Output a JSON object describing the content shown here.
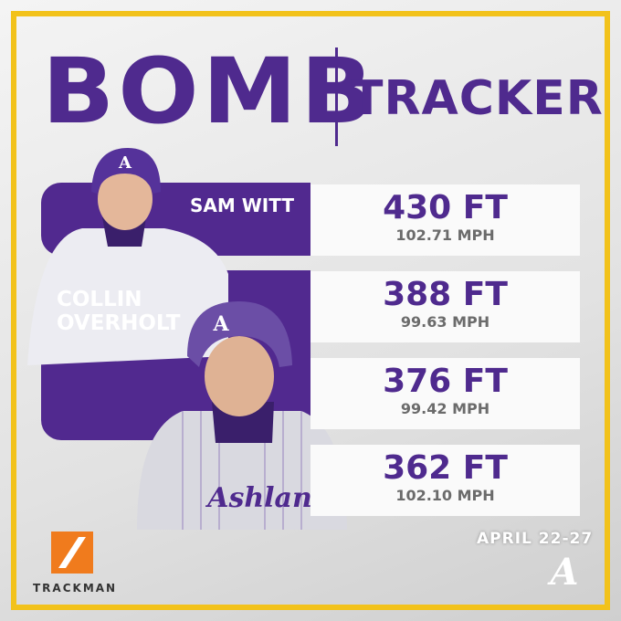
{
  "header": {
    "title_left": "BOMB",
    "title_right": "TRACKER"
  },
  "players": [
    "SAM WITT",
    "COLLIN OVERHOLT"
  ],
  "hits": [
    {
      "distance": "430 FT",
      "speed": "102.71 MPH"
    },
    {
      "distance": "388 FT",
      "speed": "99.63 MPH"
    },
    {
      "distance": "376 FT",
      "speed": "99.42 MPH"
    },
    {
      "distance": "362 FT",
      "speed": "102.10 MPH"
    }
  ],
  "footer": {
    "date": "APRIL 22-27",
    "sponsor": "TRACKMAN"
  }
}
